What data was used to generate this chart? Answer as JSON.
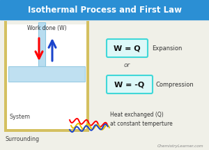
{
  "title": "Isothermal Process and First Law",
  "title_bg": "#2b8fd4",
  "title_color": "white",
  "bg_color": "#f0f0e8",
  "container_edge": "#d4c060",
  "container_fill": "white",
  "piston_fill": "#b8ddf0",
  "work_label": "Work done (W)",
  "system_label": "System",
  "surrounding_label": "Surrounding",
  "heat_label": "Heat exchanged (Q)\nat constant temperture",
  "eq1_label": "W = Q",
  "eq2_label": "W = -Q",
  "or_label": "or",
  "watermark": "ChemistryLearner.com",
  "eq_box_color": "#40d8d8",
  "eq_box_bg": "#ddf8f8"
}
